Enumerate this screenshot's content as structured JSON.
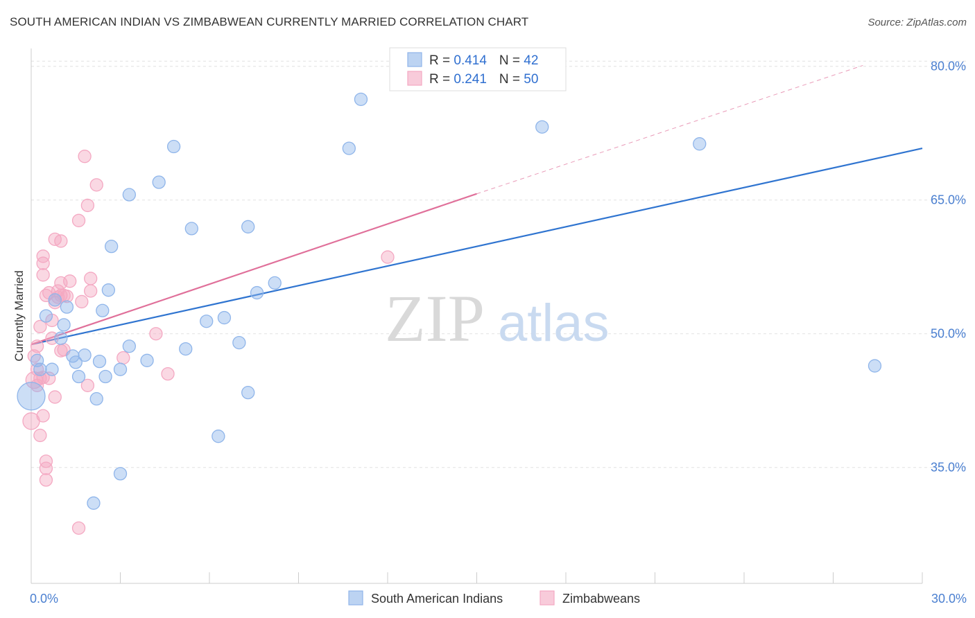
{
  "title": "SOUTH AMERICAN INDIAN VS ZIMBABWEAN CURRENTLY MARRIED CORRELATION CHART",
  "source": "Source: ZipAtlas.com",
  "watermark": {
    "zip": "ZIP",
    "atlas": "atlas"
  },
  "chart_data": {
    "type": "scatter",
    "title": "SOUTH AMERICAN INDIAN VS ZIMBABWEAN CURRENTLY MARRIED CORRELATION CHART",
    "xlabel": "",
    "ylabel": "Currently Married",
    "xlim": [
      0,
      30
    ],
    "ylim": [
      22,
      82
    ],
    "x_tick_labels": [
      {
        "value": 0,
        "label": "0.0%"
      },
      {
        "value": 30,
        "label": "30.0%"
      }
    ],
    "y_ticks": [
      {
        "value": 35,
        "label": "35.0%"
      },
      {
        "value": 50,
        "label": "50.0%"
      },
      {
        "value": 65,
        "label": "65.0%"
      },
      {
        "value": 80,
        "label": "80.0%"
      }
    ],
    "x_minor_ticks": [
      3,
      6,
      9,
      12,
      15,
      18,
      21,
      24,
      27,
      30
    ],
    "grid": true,
    "legend_position": "top-center",
    "series": [
      {
        "name": "South American Indians",
        "color": "#8fb5ea",
        "line_color": "#2f74d0",
        "stats": {
          "r_label": "R = ",
          "r": "0.414",
          "n_label": "N = ",
          "n": "42"
        },
        "trend": {
          "x0": 0,
          "y0": 48.8,
          "x1": 30,
          "y1": 70.8
        },
        "points": [
          [
            0.0,
            43.0,
            20
          ],
          [
            0.2,
            47.0,
            9
          ],
          [
            0.3,
            46.0,
            9
          ],
          [
            0.5,
            52.0,
            9
          ],
          [
            0.7,
            46.0,
            9
          ],
          [
            0.8,
            53.8,
            9
          ],
          [
            1.0,
            49.5,
            9
          ],
          [
            1.1,
            51.0,
            9
          ],
          [
            1.2,
            53.0,
            9
          ],
          [
            1.4,
            47.5,
            9
          ],
          [
            1.5,
            46.8,
            9
          ],
          [
            1.6,
            45.2,
            9
          ],
          [
            1.8,
            47.6,
            9
          ],
          [
            2.1,
            31.0,
            9
          ],
          [
            2.2,
            42.7,
            9
          ],
          [
            2.3,
            46.9,
            9
          ],
          [
            2.4,
            52.6,
            9
          ],
          [
            2.5,
            45.2,
            9
          ],
          [
            2.6,
            54.9,
            9
          ],
          [
            2.7,
            59.8,
            9
          ],
          [
            3.0,
            34.3,
            9
          ],
          [
            3.0,
            46.0,
            9
          ],
          [
            3.3,
            65.6,
            9
          ],
          [
            3.3,
            48.6,
            9
          ],
          [
            3.9,
            47.0,
            9
          ],
          [
            4.3,
            67.0,
            9
          ],
          [
            4.8,
            71.0,
            9
          ],
          [
            5.2,
            48.3,
            9
          ],
          [
            5.4,
            61.8,
            9
          ],
          [
            5.9,
            51.4,
            9
          ],
          [
            6.3,
            38.5,
            9
          ],
          [
            6.5,
            51.8,
            9
          ],
          [
            7.0,
            49.0,
            9
          ],
          [
            7.3,
            62.0,
            9
          ],
          [
            7.3,
            43.4,
            9
          ],
          [
            7.6,
            54.6,
            9
          ],
          [
            8.2,
            55.7,
            9
          ],
          [
            10.7,
            70.8,
            9
          ],
          [
            11.1,
            76.3,
            9
          ],
          [
            17.2,
            73.2,
            9
          ],
          [
            22.5,
            71.3,
            9
          ],
          [
            28.4,
            46.4,
            9
          ]
        ]
      },
      {
        "name": "Zimbabweans",
        "color": "#f4a8c2",
        "line_color": "#e0709a",
        "stats": {
          "r_label": "R = ",
          "r": "0.241",
          "n_label": "N = ",
          "n": "50"
        },
        "trend": {
          "x0": 0,
          "y0": 48.8,
          "x1": 15,
          "y1": 65.7
        },
        "trend_ext": {
          "x0": 15,
          "y0": 65.7,
          "x1": 28,
          "y1": 80.1
        },
        "points": [
          [
            0.0,
            40.2,
            12
          ],
          [
            0.1,
            44.8,
            12
          ],
          [
            0.1,
            47.5,
            9
          ],
          [
            0.2,
            46.0,
            9
          ],
          [
            0.2,
            44.2,
            9
          ],
          [
            0.3,
            45.0,
            9
          ],
          [
            0.2,
            48.6,
            9
          ],
          [
            0.3,
            38.6,
            9
          ],
          [
            0.3,
            50.8,
            9
          ],
          [
            0.4,
            56.6,
            9
          ],
          [
            0.4,
            58.7,
            9
          ],
          [
            0.4,
            57.9,
            9
          ],
          [
            0.4,
            40.8,
            9
          ],
          [
            0.4,
            45.1,
            9
          ],
          [
            0.5,
            35.7,
            9
          ],
          [
            0.5,
            34.9,
            9
          ],
          [
            0.5,
            33.6,
            9
          ],
          [
            0.5,
            54.3,
            9
          ],
          [
            0.6,
            54.6,
            9
          ],
          [
            0.6,
            45.0,
            9
          ],
          [
            0.7,
            49.5,
            9
          ],
          [
            0.7,
            51.5,
            9
          ],
          [
            0.8,
            42.9,
            9
          ],
          [
            0.8,
            60.6,
            9
          ],
          [
            0.8,
            53.5,
            9
          ],
          [
            0.9,
            54.8,
            9
          ],
          [
            0.9,
            54.1,
            9
          ],
          [
            1.0,
            54.3,
            9
          ],
          [
            1.0,
            60.4,
            9
          ],
          [
            1.0,
            55.7,
            9
          ],
          [
            1.0,
            48.1,
            9
          ],
          [
            1.1,
            48.2,
            9
          ],
          [
            1.1,
            54.3,
            9
          ],
          [
            1.2,
            54.2,
            9
          ],
          [
            1.3,
            55.9,
            9
          ],
          [
            1.6,
            28.2,
            9
          ],
          [
            1.6,
            62.7,
            9
          ],
          [
            1.7,
            53.6,
            9
          ],
          [
            1.8,
            69.9,
            9
          ],
          [
            1.9,
            44.2,
            9
          ],
          [
            1.9,
            64.4,
            9
          ],
          [
            2.0,
            54.8,
            9
          ],
          [
            2.0,
            56.2,
            9
          ],
          [
            2.2,
            66.7,
            9
          ],
          [
            3.1,
            47.3,
            9
          ],
          [
            4.2,
            50.0,
            9
          ],
          [
            4.6,
            45.5,
            9
          ],
          [
            12.0,
            58.6,
            9
          ],
          [
            3.0,
            35.1,
            0
          ],
          [
            0.6,
            47.0,
            0
          ]
        ]
      }
    ]
  }
}
